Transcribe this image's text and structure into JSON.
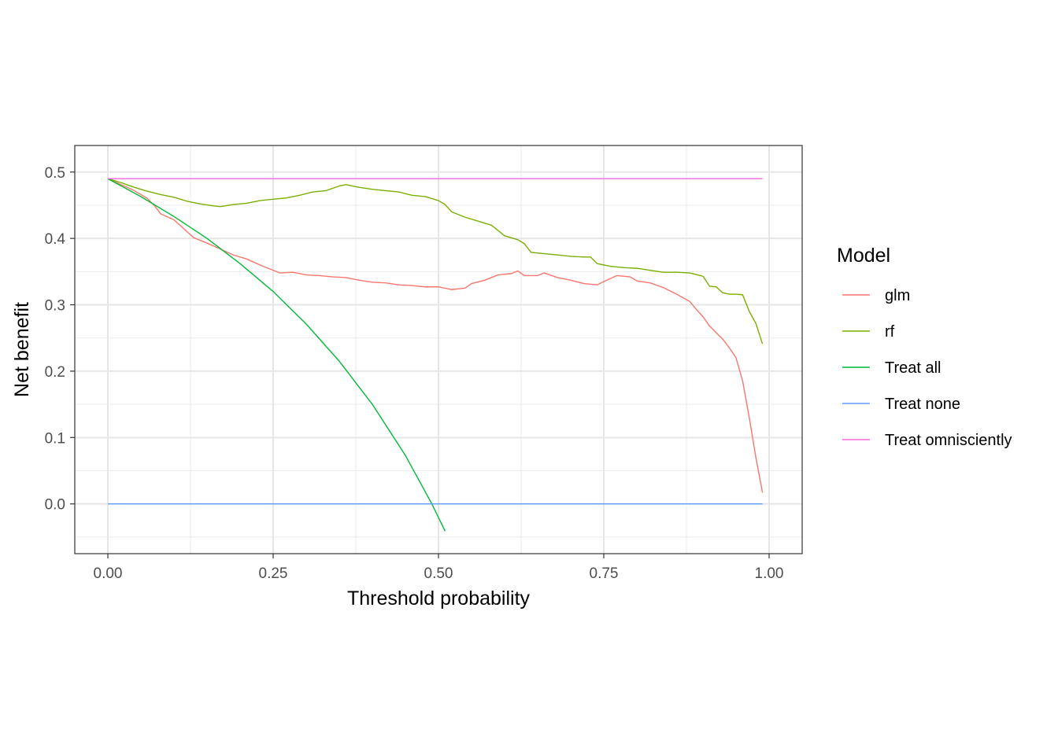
{
  "chart_data": {
    "type": "line",
    "title": "",
    "xlabel": "Threshold probability",
    "ylabel": "Net benefit",
    "xlim": [
      -0.05,
      1.05
    ],
    "ylim": [
      -0.075,
      0.54
    ],
    "grid": true,
    "legend": {
      "title": "Model",
      "position": "right"
    },
    "x_ticks": [
      {
        "value": 0.0,
        "label": "0.00"
      },
      {
        "value": 0.25,
        "label": "0.25"
      },
      {
        "value": 0.5,
        "label": "0.50"
      },
      {
        "value": 0.75,
        "label": "0.75"
      },
      {
        "value": 1.0,
        "label": "1.00"
      }
    ],
    "y_ticks": [
      {
        "value": 0.0,
        "label": "0.0"
      },
      {
        "value": 0.1,
        "label": "0.1"
      },
      {
        "value": 0.2,
        "label": "0.2"
      },
      {
        "value": 0.3,
        "label": "0.3"
      },
      {
        "value": 0.4,
        "label": "0.4"
      },
      {
        "value": 0.5,
        "label": "0.5"
      }
    ],
    "series": [
      {
        "name": "glm",
        "color": "#F8766D",
        "points": [
          [
            0.0,
            0.49
          ],
          [
            0.02,
            0.481
          ],
          [
            0.04,
            0.472
          ],
          [
            0.06,
            0.46
          ],
          [
            0.07,
            0.45
          ],
          [
            0.08,
            0.437
          ],
          [
            0.1,
            0.428
          ],
          [
            0.12,
            0.41
          ],
          [
            0.13,
            0.401
          ],
          [
            0.15,
            0.393
          ],
          [
            0.17,
            0.384
          ],
          [
            0.19,
            0.375
          ],
          [
            0.21,
            0.369
          ],
          [
            0.23,
            0.36
          ],
          [
            0.25,
            0.352
          ],
          [
            0.26,
            0.348
          ],
          [
            0.28,
            0.349
          ],
          [
            0.3,
            0.345
          ],
          [
            0.32,
            0.344
          ],
          [
            0.34,
            0.342
          ],
          [
            0.36,
            0.341
          ],
          [
            0.38,
            0.337
          ],
          [
            0.4,
            0.334
          ],
          [
            0.42,
            0.333
          ],
          [
            0.44,
            0.33
          ],
          [
            0.46,
            0.329
          ],
          [
            0.48,
            0.327
          ],
          [
            0.5,
            0.327
          ],
          [
            0.52,
            0.323
          ],
          [
            0.54,
            0.325
          ],
          [
            0.55,
            0.332
          ],
          [
            0.57,
            0.337
          ],
          [
            0.59,
            0.345
          ],
          [
            0.61,
            0.347
          ],
          [
            0.62,
            0.351
          ],
          [
            0.63,
            0.344
          ],
          [
            0.65,
            0.344
          ],
          [
            0.66,
            0.348
          ],
          [
            0.68,
            0.341
          ],
          [
            0.7,
            0.337
          ],
          [
            0.72,
            0.332
          ],
          [
            0.74,
            0.33
          ],
          [
            0.75,
            0.335
          ],
          [
            0.77,
            0.344
          ],
          [
            0.79,
            0.342
          ],
          [
            0.8,
            0.336
          ],
          [
            0.82,
            0.333
          ],
          [
            0.84,
            0.326
          ],
          [
            0.86,
            0.316
          ],
          [
            0.88,
            0.305
          ],
          [
            0.89,
            0.293
          ],
          [
            0.9,
            0.282
          ],
          [
            0.91,
            0.268
          ],
          [
            0.92,
            0.258
          ],
          [
            0.93,
            0.248
          ],
          [
            0.94,
            0.235
          ],
          [
            0.95,
            0.22
          ],
          [
            0.96,
            0.185
          ],
          [
            0.97,
            0.13
          ],
          [
            0.98,
            0.07
          ],
          [
            0.99,
            0.017
          ]
        ]
      },
      {
        "name": "rf",
        "color": "#7CAE00",
        "points": [
          [
            0.0,
            0.49
          ],
          [
            0.02,
            0.484
          ],
          [
            0.04,
            0.477
          ],
          [
            0.06,
            0.471
          ],
          [
            0.08,
            0.466
          ],
          [
            0.1,
            0.462
          ],
          [
            0.12,
            0.456
          ],
          [
            0.14,
            0.452
          ],
          [
            0.16,
            0.449
          ],
          [
            0.17,
            0.448
          ],
          [
            0.19,
            0.451
          ],
          [
            0.21,
            0.453
          ],
          [
            0.23,
            0.457
          ],
          [
            0.25,
            0.459
          ],
          [
            0.27,
            0.461
          ],
          [
            0.29,
            0.465
          ],
          [
            0.31,
            0.47
          ],
          [
            0.33,
            0.472
          ],
          [
            0.35,
            0.479
          ],
          [
            0.36,
            0.481
          ],
          [
            0.38,
            0.477
          ],
          [
            0.4,
            0.474
          ],
          [
            0.42,
            0.472
          ],
          [
            0.44,
            0.47
          ],
          [
            0.46,
            0.465
          ],
          [
            0.48,
            0.463
          ],
          [
            0.5,
            0.457
          ],
          [
            0.51,
            0.451
          ],
          [
            0.52,
            0.44
          ],
          [
            0.54,
            0.432
          ],
          [
            0.56,
            0.426
          ],
          [
            0.58,
            0.42
          ],
          [
            0.6,
            0.404
          ],
          [
            0.62,
            0.398
          ],
          [
            0.63,
            0.392
          ],
          [
            0.64,
            0.379
          ],
          [
            0.66,
            0.377
          ],
          [
            0.68,
            0.375
          ],
          [
            0.7,
            0.373
          ],
          [
            0.72,
            0.372
          ],
          [
            0.73,
            0.372
          ],
          [
            0.74,
            0.362
          ],
          [
            0.76,
            0.358
          ],
          [
            0.78,
            0.356
          ],
          [
            0.8,
            0.355
          ],
          [
            0.82,
            0.352
          ],
          [
            0.84,
            0.349
          ],
          [
            0.86,
            0.349
          ],
          [
            0.88,
            0.348
          ],
          [
            0.9,
            0.343
          ],
          [
            0.91,
            0.328
          ],
          [
            0.92,
            0.327
          ],
          [
            0.93,
            0.318
          ],
          [
            0.94,
            0.316
          ],
          [
            0.95,
            0.316
          ],
          [
            0.96,
            0.315
          ],
          [
            0.97,
            0.29
          ],
          [
            0.98,
            0.272
          ],
          [
            0.99,
            0.241
          ]
        ]
      },
      {
        "name": "Treat all",
        "color": "#00BA38",
        "points": [
          [
            0.0,
            0.49
          ],
          [
            0.05,
            0.463
          ],
          [
            0.1,
            0.433
          ],
          [
            0.15,
            0.4
          ],
          [
            0.2,
            0.362
          ],
          [
            0.25,
            0.32
          ],
          [
            0.3,
            0.271
          ],
          [
            0.35,
            0.215
          ],
          [
            0.4,
            0.15
          ],
          [
            0.45,
            0.073
          ],
          [
            0.49,
            0.0
          ],
          [
            0.51,
            -0.041
          ]
        ]
      },
      {
        "name": "Treat none",
        "color": "#619CFF",
        "points": [
          [
            0.0,
            0.0
          ],
          [
            0.99,
            0.0
          ]
        ]
      },
      {
        "name": "Treat omnisciently",
        "color": "#F564E3",
        "points": [
          [
            0.0,
            0.49
          ],
          [
            0.99,
            0.49
          ]
        ]
      }
    ]
  }
}
